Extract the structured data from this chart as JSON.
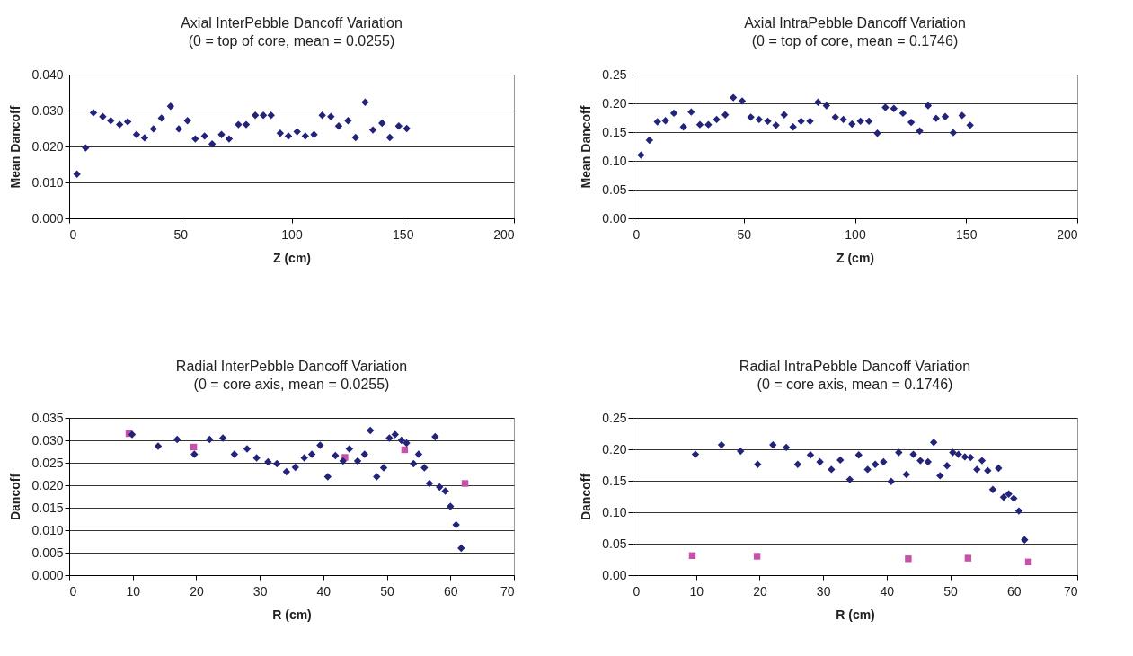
{
  "chart_data": [
    {
      "type": "scatter",
      "title": "Axial InterPebble Dancoff Variation",
      "subtitle": "(0 = top of core, mean = 0.0255)",
      "xlabel": "Z (cm)",
      "ylabel": "Mean Dancoff",
      "xlim": [
        0,
        200
      ],
      "xticks": [
        0,
        50,
        100,
        150,
        200
      ],
      "ylim": [
        0,
        0.04
      ],
      "yticks": [
        {
          "value": 0,
          "label": "0.000"
        },
        {
          "value": 0.01,
          "label": "0.010"
        },
        {
          "value": 0.02,
          "label": "0.020"
        },
        {
          "value": 0.03,
          "label": "0.030"
        },
        {
          "value": 0.04,
          "label": "0.040"
        }
      ],
      "grid": "y",
      "series": [
        {
          "color": "#23237a",
          "marker": "diamond",
          "x": [
            3.5,
            7.4,
            10.9,
            15.1,
            18.7,
            22.7,
            26.3,
            30.3,
            33.9,
            37.9,
            41.5,
            45.6,
            49.3,
            53.2,
            56.7,
            60.9,
            64.3,
            68.5,
            71.9,
            76.1,
            79.6,
            83.7,
            87.3,
            90.8,
            94.9,
            98.6,
            102.5,
            106.2,
            110.1,
            113.8,
            117.7,
            121.2,
            125.4,
            128.8,
            133.1,
            136.6,
            140.7,
            144.2,
            148.2,
            151.8
          ],
          "values": [
            0.0123,
            0.0196,
            0.0294,
            0.0283,
            0.0272,
            0.0261,
            0.0269,
            0.0233,
            0.0224,
            0.0249,
            0.0279,
            0.0312,
            0.0249,
            0.0272,
            0.0221,
            0.0229,
            0.0207,
            0.0233,
            0.0221,
            0.0261,
            0.0261,
            0.0287,
            0.0287,
            0.0287,
            0.0237,
            0.0229,
            0.0241,
            0.0229,
            0.0233,
            0.0287,
            0.0283,
            0.0257,
            0.0272,
            0.0225,
            0.0323,
            0.0246,
            0.0265,
            0.0225,
            0.0257,
            0.025
          ]
        }
      ]
    },
    {
      "type": "scatter",
      "title": "Axial IntraPebble Dancoff Variation",
      "subtitle": "(0 = top of core, mean = 0.1746)",
      "xlabel": "Z (cm)",
      "ylabel": "Mean Dancoff",
      "xlim": [
        0,
        200
      ],
      "xticks": [
        0,
        50,
        100,
        150,
        200
      ],
      "ylim": [
        0,
        0.25
      ],
      "yticks": [
        {
          "value": 0,
          "label": "0.00"
        },
        {
          "value": 0.05,
          "label": "0.05"
        },
        {
          "value": 0.1,
          "label": "0.10"
        },
        {
          "value": 0.15,
          "label": "0.15"
        },
        {
          "value": 0.2,
          "label": "0.20"
        },
        {
          "value": 0.25,
          "label": "0.25"
        }
      ],
      "grid": "y",
      "series": [
        {
          "color": "#23237a",
          "marker": "diamond",
          "x": [
            3.8,
            7.6,
            11.2,
            14.8,
            18.6,
            22.9,
            26.4,
            30.3,
            34.1,
            37.8,
            41.7,
            45.3,
            49.3,
            53.2,
            56.9,
            60.8,
            64.5,
            68.2,
            72.2,
            75.8,
            79.8,
            83.4,
            87.2,
            91.2,
            94.8,
            98.7,
            102.5,
            106.3,
            110.1,
            113.7,
            117.5,
            121.6,
            125.3,
            129.1,
            132.9,
            136.5,
            140.6,
            144.2,
            148.2,
            151.8
          ],
          "values": [
            0.11,
            0.136,
            0.168,
            0.17,
            0.183,
            0.159,
            0.185,
            0.163,
            0.163,
            0.172,
            0.18,
            0.21,
            0.204,
            0.176,
            0.172,
            0.169,
            0.162,
            0.18,
            0.159,
            0.169,
            0.169,
            0.202,
            0.196,
            0.176,
            0.172,
            0.164,
            0.169,
            0.169,
            0.148,
            0.193,
            0.191,
            0.183,
            0.167,
            0.152,
            0.196,
            0.174,
            0.177,
            0.149,
            0.179,
            0.162
          ]
        }
      ]
    },
    {
      "type": "scatter",
      "title": "Radial InterPebble Dancoff Variation",
      "subtitle": "(0 = core axis, mean = 0.0255)",
      "xlabel": "R (cm)",
      "ylabel": "Dancoff",
      "xlim": [
        0,
        70
      ],
      "xticks": [
        0,
        10,
        20,
        30,
        40,
        50,
        60,
        70
      ],
      "ylim": [
        0,
        0.035
      ],
      "yticks": [
        {
          "value": 0,
          "label": "0.000"
        },
        {
          "value": 0.005,
          "label": "0.005"
        },
        {
          "value": 0.01,
          "label": "0.010"
        },
        {
          "value": 0.015,
          "label": "0.015"
        },
        {
          "value": 0.02,
          "label": "0.020"
        },
        {
          "value": 0.025,
          "label": "0.025"
        },
        {
          "value": 0.03,
          "label": "0.030"
        },
        {
          "value": 0.035,
          "label": "0.035"
        }
      ],
      "grid": "y",
      "series": [
        {
          "color": "#23237a",
          "marker": "diamond",
          "x": [
            9.9,
            14.0,
            17.0,
            19.7,
            22.1,
            24.2,
            26.0,
            28.0,
            29.5,
            31.3,
            32.7,
            34.2,
            35.6,
            37.0,
            38.2,
            39.5,
            40.7,
            41.9,
            43.1,
            44.1,
            45.4,
            46.5,
            47.4,
            48.4,
            49.5,
            50.4,
            51.3,
            52.3,
            53.1,
            54.2,
            55.0,
            55.9,
            56.7,
            57.6,
            58.3,
            59.2,
            60.0,
            60.9,
            61.7
          ],
          "values": [
            0.0313,
            0.0287,
            0.0302,
            0.0269,
            0.0302,
            0.0305,
            0.0269,
            0.0281,
            0.0261,
            0.0252,
            0.0248,
            0.023,
            0.024,
            0.0261,
            0.0269,
            0.0289,
            0.0219,
            0.0266,
            0.0254,
            0.0281,
            0.0254,
            0.0269,
            0.0322,
            0.0219,
            0.0239,
            0.0305,
            0.0313,
            0.03,
            0.0294,
            0.0248,
            0.0269,
            0.0239,
            0.0204,
            0.0308,
            0.0196,
            0.0187,
            0.0153,
            0.0112,
            0.006
          ]
        },
        {
          "color": "#c850a8",
          "marker": "square",
          "x": [
            9.4,
            19.6,
            43.4,
            52.8,
            62.3
          ],
          "values": [
            0.0315,
            0.0285,
            0.0262,
            0.0279,
            0.0204
          ]
        }
      ]
    },
    {
      "type": "scatter",
      "title": "Radial IntraPebble Dancoff Variation",
      "subtitle": "(0 = core axis, mean = 0.1746)",
      "xlabel": "R (cm)",
      "ylabel": "Dancoff",
      "xlim": [
        0,
        70
      ],
      "xticks": [
        0,
        10,
        20,
        30,
        40,
        50,
        60,
        70
      ],
      "ylim": [
        0,
        0.25
      ],
      "yticks": [
        {
          "value": 0,
          "label": "0.00"
        },
        {
          "value": 0.05,
          "label": "0.05"
        },
        {
          "value": 0.1,
          "label": "0.10"
        },
        {
          "value": 0.15,
          "label": "0.15"
        },
        {
          "value": 0.2,
          "label": "0.20"
        },
        {
          "value": 0.25,
          "label": "0.25"
        }
      ],
      "grid": "y",
      "series": [
        {
          "color": "#23237a",
          "marker": "diamond",
          "x": [
            9.9,
            14.0,
            17.0,
            19.7,
            22.1,
            24.2,
            26.0,
            28.0,
            29.5,
            31.3,
            32.7,
            34.2,
            35.6,
            37.0,
            38.2,
            39.5,
            40.7,
            41.9,
            43.1,
            44.2,
            45.3,
            46.5,
            47.4,
            48.4,
            49.5,
            50.4,
            51.3,
            52.3,
            53.2,
            54.2,
            55.0,
            55.9,
            56.7,
            57.6,
            58.4,
            59.2,
            60.0,
            60.8,
            61.7
          ],
          "values": [
            0.192,
            0.207,
            0.197,
            0.176,
            0.207,
            0.203,
            0.176,
            0.191,
            0.18,
            0.168,
            0.183,
            0.152,
            0.191,
            0.168,
            0.176,
            0.18,
            0.149,
            0.195,
            0.16,
            0.192,
            0.182,
            0.18,
            0.211,
            0.158,
            0.174,
            0.195,
            0.192,
            0.188,
            0.187,
            0.168,
            0.182,
            0.166,
            0.136,
            0.17,
            0.124,
            0.129,
            0.122,
            0.102,
            0.056
          ]
        },
        {
          "color": "#c850a8",
          "marker": "square",
          "x": [
            9.4,
            19.6,
            43.4,
            52.8,
            62.3
          ],
          "values": [
            0.031,
            0.03,
            0.026,
            0.027,
            0.021
          ]
        }
      ]
    }
  ]
}
